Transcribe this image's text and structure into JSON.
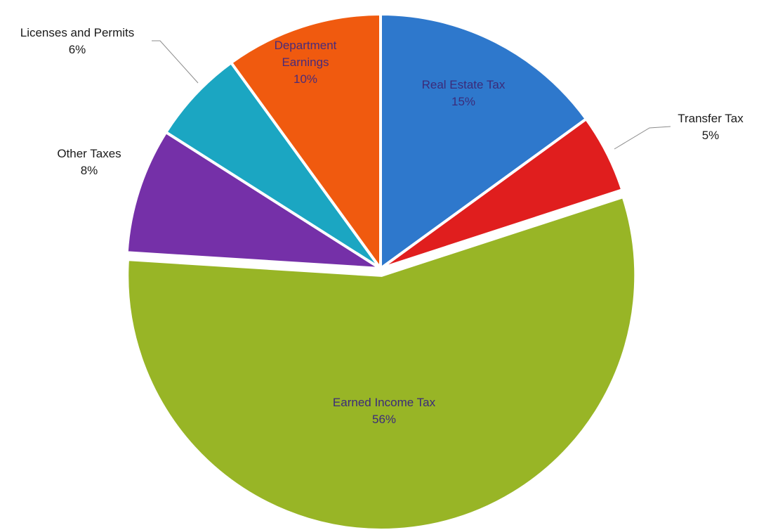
{
  "chart_data": {
    "type": "pie",
    "title": "",
    "start_angle_deg": 0,
    "direction": "clockwise",
    "slices": [
      {
        "label": "Real Estate Tax",
        "pct_label": "15%",
        "value": 15,
        "color": "#2e78cc",
        "label_color": "#3b2b7a"
      },
      {
        "label": "Transfer Tax",
        "pct_label": "5%",
        "value": 5,
        "color": "#e01e1e",
        "label_color": "#1a1a1a"
      },
      {
        "label": "Earned Income Tax",
        "pct_label": "56%",
        "value": 56,
        "color": "#98b526",
        "label_color": "#3b2b7a"
      },
      {
        "label": "Other Taxes",
        "pct_label": "8%",
        "value": 8,
        "color": "#7530a8",
        "label_color": "#1a1a1a"
      },
      {
        "label": "Licenses and Permits",
        "pct_label": "6%",
        "value": 6,
        "color": "#1ba6c2",
        "label_color": "#1a1a1a"
      },
      {
        "label": "Department Earnings",
        "pct_label": "10%",
        "value": 10,
        "color": "#f05a0f",
        "label_color": "#4a2b7a"
      }
    ]
  }
}
